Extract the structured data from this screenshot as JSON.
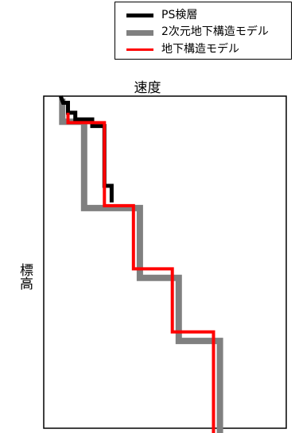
{
  "chart_data": {
    "type": "line",
    "xlabel": "速度",
    "ylabel": "標高",
    "legend_position": "top-right",
    "grid": false,
    "x_ticks": false,
    "y_ticks": false,
    "series": [
      {
        "name": "PS検層",
        "color": "#000000",
        "points": [
          [
            0.07,
            1.0
          ],
          [
            0.08,
            0.98
          ],
          [
            0.1,
            0.98
          ],
          [
            0.1,
            0.95
          ],
          [
            0.13,
            0.95
          ],
          [
            0.13,
            0.93
          ],
          [
            0.2,
            0.93
          ],
          [
            0.2,
            0.91
          ],
          [
            0.25,
            0.91
          ],
          [
            0.25,
            0.73
          ],
          [
            0.28,
            0.73
          ],
          [
            0.28,
            0.68
          ]
        ]
      },
      {
        "name": "2次元地下構造モデル",
        "color": "#808080",
        "points": [
          [
            0.07,
            1.0
          ],
          [
            0.07,
            0.93
          ],
          [
            0.16,
            0.93
          ],
          [
            0.16,
            0.67
          ],
          [
            0.39,
            0.67
          ],
          [
            0.39,
            0.46
          ],
          [
            0.55,
            0.46
          ],
          [
            0.55,
            0.27
          ],
          [
            0.72,
            0.27
          ],
          [
            0.72,
            -0.06
          ]
        ]
      },
      {
        "name": "地下構造モデル",
        "color": "#ff0000",
        "points": [
          [
            0.1,
            0.95
          ],
          [
            0.1,
            0.92
          ],
          [
            0.25,
            0.92
          ],
          [
            0.25,
            0.67
          ],
          [
            0.37,
            0.67
          ],
          [
            0.37,
            0.48
          ],
          [
            0.53,
            0.48
          ],
          [
            0.53,
            0.29
          ],
          [
            0.7,
            0.29
          ],
          [
            0.7,
            -0.03
          ]
        ]
      }
    ]
  }
}
